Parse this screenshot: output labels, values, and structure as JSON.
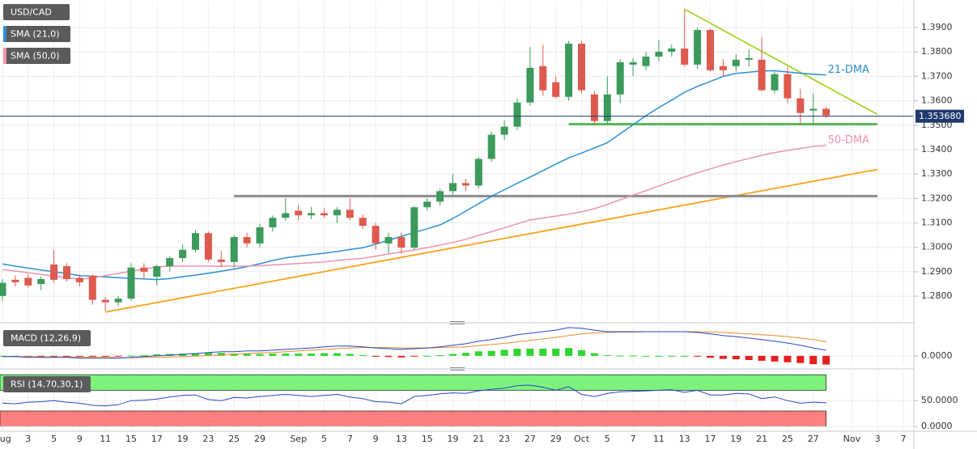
{
  "chart_data": [
    {
      "type": "candlestick",
      "name": "USD/CAD",
      "categories": [
        "Aug",
        null,
        "3",
        null,
        "5",
        null,
        "9",
        null,
        "11",
        null,
        "15",
        null,
        "17",
        null,
        "19",
        null,
        "23",
        null,
        "25",
        null,
        "29",
        null,
        null,
        "Sep",
        null,
        "5",
        null,
        "7",
        null,
        "9",
        null,
        "13",
        null,
        "15",
        null,
        "19",
        null,
        "21",
        null,
        "23",
        null,
        "27",
        null,
        "29",
        null,
        "Oct",
        null,
        "5",
        null,
        "7",
        null,
        "11",
        null,
        "13",
        null,
        "17",
        null,
        "19",
        null,
        "21",
        null,
        "25",
        null,
        "27",
        null,
        null,
        "Nov",
        null,
        "3",
        null,
        "7"
      ],
      "open": [
        1.2801,
        1.2867,
        1.2875,
        1.285,
        1.293,
        1.2923,
        1.2875,
        1.2884,
        1.2785,
        1.2775,
        1.279,
        1.2917,
        1.288,
        1.2923,
        1.2956,
        1.299,
        1.3058,
        1.295,
        1.294,
        1.3042,
        1.3016,
        1.3082,
        1.3121,
        1.315,
        1.3131,
        1.314,
        1.3131,
        1.3154,
        1.3121,
        1.3088,
        1.3016,
        1.3042,
        1.2999,
        1.3164,
        1.3187,
        1.323,
        1.3263,
        1.3253,
        1.3362,
        1.3461,
        1.3494,
        1.3593,
        1.3742,
        1.3676,
        1.3616,
        1.3834,
        1.3626,
        1.3517,
        1.3626,
        1.3748,
        1.3742,
        1.3781,
        1.3801,
        1.3814,
        1.3748,
        1.389,
        1.3742,
        1.3742,
        1.3768,
        1.3768,
        1.3643,
        1.3709,
        1.361,
        1.356,
        1.3567,
        null,
        null,
        null,
        null,
        null,
        null
      ],
      "high": [
        1.287,
        1.2885,
        1.289,
        1.288,
        1.299,
        1.2935,
        1.289,
        1.289,
        1.2795,
        1.28,
        1.2935,
        1.2935,
        1.293,
        1.2965,
        1.301,
        1.307,
        1.3065,
        1.2985,
        1.305,
        1.306,
        1.3095,
        1.313,
        1.32,
        1.3175,
        1.3165,
        1.316,
        1.3165,
        1.32,
        1.3135,
        1.31,
        1.306,
        1.306,
        1.317,
        1.32,
        1.324,
        1.33,
        1.328,
        1.337,
        1.3475,
        1.352,
        1.361,
        1.382,
        1.383,
        1.37,
        1.3845,
        1.3845,
        1.364,
        1.37,
        1.377,
        1.3775,
        1.38,
        1.385,
        1.383,
        1.3975,
        1.39,
        1.3895,
        1.377,
        1.379,
        1.381,
        1.386,
        1.372,
        1.374,
        1.365,
        1.363,
        1.3575,
        null,
        null,
        null,
        null,
        null,
        null
      ],
      "low": [
        1.278,
        1.284,
        1.2835,
        1.2825,
        1.2855,
        1.286,
        1.284,
        1.2765,
        1.274,
        1.276,
        1.278,
        1.287,
        1.2845,
        1.29,
        1.294,
        1.298,
        1.294,
        1.292,
        1.2915,
        1.3,
        1.3,
        1.3065,
        1.311,
        1.311,
        1.3115,
        1.312,
        1.31,
        1.311,
        1.3075,
        1.299,
        1.2975,
        1.2975,
        1.299,
        1.315,
        1.317,
        1.3215,
        1.323,
        1.324,
        1.335,
        1.344,
        1.348,
        1.358,
        1.362,
        1.361,
        1.36,
        1.363,
        1.35,
        1.3505,
        1.359,
        1.37,
        1.3725,
        1.376,
        1.378,
        1.374,
        1.373,
        1.372,
        1.37,
        1.372,
        1.374,
        1.364,
        1.363,
        1.359,
        1.35,
        1.35,
        1.353,
        null,
        null,
        null,
        null,
        null,
        null
      ],
      "close": [
        1.2855,
        1.2857,
        1.2844,
        1.287,
        1.2867,
        1.287,
        1.2857,
        1.2785,
        1.2775,
        1.279,
        1.2917,
        1.29,
        1.2923,
        1.2956,
        1.299,
        1.3058,
        1.295,
        1.294,
        1.3042,
        1.3016,
        1.3082,
        1.3121,
        1.314,
        1.3131,
        1.314,
        1.3131,
        1.3154,
        1.3121,
        1.3088,
        1.3016,
        1.3042,
        1.2999,
        1.3164,
        1.3187,
        1.323,
        1.3263,
        1.3253,
        1.3362,
        1.3461,
        1.3494,
        1.3593,
        1.3735,
        1.3643,
        1.3616,
        1.3834,
        1.3643,
        1.3517,
        1.3626,
        1.3758,
        1.3758,
        1.3781,
        1.3801,
        1.3814,
        1.3748,
        1.389,
        1.3725,
        1.3725,
        1.3768,
        1.3775,
        1.3643,
        1.3709,
        1.361,
        1.355,
        1.3567,
        1.354,
        null,
        null,
        null,
        null,
        null,
        null
      ],
      "up_color": "#3c9a5b",
      "down_color": "#dd5a4e",
      "ylim": [
        1.2701,
        1.4006
      ],
      "yticks": [
        {
          "value": 1.28,
          "label": "1.2800"
        },
        {
          "value": 1.29,
          "label": "1.2900"
        },
        {
          "value": 1.3,
          "label": "1.3000"
        },
        {
          "value": 1.31,
          "label": "1.3100"
        },
        {
          "value": 1.32,
          "label": "1.3200"
        },
        {
          "value": 1.33,
          "label": "1.3300"
        },
        {
          "value": 1.34,
          "label": "1.3400"
        },
        {
          "value": 1.35,
          "label": "1.3500"
        },
        {
          "value": 1.36,
          "label": "1.3600"
        },
        {
          "value": 1.37,
          "label": "1.3700"
        },
        {
          "value": 1.38,
          "label": "1.3800"
        },
        {
          "value": 1.39,
          "label": "1.3900"
        }
      ],
      "grid": true,
      "series": [
        {
          "name": "SMA (21,0)",
          "label": "21-DMA",
          "color": "#2b8fd6",
          "values": [
            1.2932,
            1.2923,
            1.2915,
            1.2907,
            1.29,
            1.2892,
            1.2884,
            1.2882,
            1.2879,
            1.2876,
            1.2873,
            1.2871,
            1.2868,
            1.2872,
            1.288,
            1.2886,
            1.2894,
            1.2902,
            1.2911,
            1.2921,
            1.2933,
            1.2946,
            1.2957,
            1.2964,
            1.297,
            1.2976,
            1.2983,
            1.2991,
            1.2998,
            1.3013,
            1.3029,
            1.3045,
            1.3061,
            1.3076,
            1.3092,
            1.3118,
            1.3148,
            1.3179,
            1.3209,
            1.3236,
            1.3262,
            1.3288,
            1.3314,
            1.3341,
            1.3366,
            1.3386,
            1.3407,
            1.3428,
            1.3465,
            1.3502,
            1.3539,
            1.3572,
            1.3603,
            1.3635,
            1.3659,
            1.3679,
            1.37,
            1.3712,
            1.3717,
            1.3722,
            1.3723,
            1.3718,
            1.3713,
            1.3709,
            1.3706,
            null,
            null,
            null,
            null,
            null,
            null
          ]
        },
        {
          "name": "SMA (50,0)",
          "label": "50-DMA",
          "color": "#ee93ab",
          "values": [
            1.2909,
            1.2903,
            1.2896,
            1.2889,
            1.2882,
            1.2876,
            1.2869,
            1.2875,
            1.2884,
            1.2893,
            1.2902,
            1.2911,
            1.292,
            1.2923,
            1.2923,
            1.2923,
            1.2923,
            1.2923,
            1.2923,
            1.2923,
            1.2925,
            1.2928,
            1.2931,
            1.2934,
            1.2937,
            1.294,
            1.2946,
            1.2951,
            1.2955,
            1.2964,
            1.2973,
            1.2981,
            1.2989,
            1.2999,
            1.3009,
            1.302,
            1.3033,
            1.3049,
            1.3064,
            1.308,
            1.3096,
            1.3112,
            1.312,
            1.3128,
            1.3136,
            1.3145,
            1.3158,
            1.3176,
            1.3195,
            1.3214,
            1.3232,
            1.3251,
            1.327,
            1.3288,
            1.3305,
            1.3321,
            1.3337,
            1.3351,
            1.3364,
            1.3377,
            1.3388,
            1.3397,
            1.3405,
            1.3413,
            1.3418,
            null,
            null,
            null,
            null,
            null,
            null
          ]
        }
      ],
      "trendlines": [
        {
          "color": "#f5a31a",
          "x": [
            8,
            68
          ],
          "values": [
            1.2735,
            1.3319
          ]
        },
        {
          "color": "#a6d62a",
          "x": [
            53,
            68
          ],
          "values": [
            1.3975,
            1.3544
          ]
        },
        {
          "color": "#8c8c8c",
          "x": [
            18,
            68
          ],
          "values": [
            1.321,
            1.321
          ]
        },
        {
          "color": "#5cb85c",
          "x": [
            44,
            68
          ],
          "values": [
            1.3504,
            1.3504
          ]
        }
      ],
      "last_price": {
        "value": 1.35368,
        "label": "1.353680"
      }
    },
    {
      "type": "macd",
      "name": "MACD (12,26,9)",
      "macd": {
        "color": "#2348c8",
        "values": [
          -0.0002,
          -0.0002,
          -0.0004,
          -0.0004,
          -0.0004,
          -0.0004,
          -0.0006,
          -0.0006,
          -0.0006,
          -0.0006,
          -0.0004,
          -0.0002,
          0,
          0.0002,
          0.0004,
          0.0006,
          0.0009,
          0.0011,
          0.0011,
          0.0013,
          0.0013,
          0.0015,
          0.0017,
          0.0019,
          0.0021,
          0.0024,
          0.0026,
          0.0026,
          0.0024,
          0.0021,
          0.0019,
          0.0017,
          0.0019,
          0.0021,
          0.0024,
          0.0028,
          0.0032,
          0.0039,
          0.0043,
          0.0049,
          0.0056,
          0.006,
          0.0064,
          0.0068,
          0.0075,
          0.0073,
          0.0068,
          0.0064,
          0.0064,
          0.0064,
          0.0064,
          0.0064,
          0.0064,
          0.0064,
          0.0062,
          0.0058,
          0.0054,
          0.0051,
          0.0047,
          0.0043,
          0.0039,
          0.0034,
          0.0028,
          0.0021,
          0.0015,
          null,
          null,
          null,
          null,
          null,
          null
        ]
      },
      "signal": {
        "color": "#f08a24",
        "values": [
          -0.0002,
          -0.0002,
          -0.0002,
          -0.0003,
          -0.0003,
          -0.0003,
          -0.0004,
          -0.0004,
          -0.0004,
          -0.0005,
          -0.0005,
          -0.0004,
          -0.0004,
          -0.0003,
          -0.0002,
          -0.0001,
          0.0001,
          0.0003,
          0.0005,
          0.0006,
          0.0008,
          0.0009,
          0.0011,
          0.0013,
          0.0015,
          0.0017,
          0.0019,
          0.0021,
          0.0022,
          0.0022,
          0.0022,
          0.0021,
          0.0021,
          0.0021,
          0.0022,
          0.0023,
          0.0024,
          0.0027,
          0.003,
          0.0033,
          0.0037,
          0.0041,
          0.0045,
          0.0049,
          0.0054,
          0.0058,
          0.0061,
          0.0062,
          0.0063,
          0.0063,
          0.0064,
          0.0064,
          0.0064,
          0.0064,
          0.0064,
          0.0063,
          0.0062,
          0.006,
          0.0058,
          0.0056,
          0.0054,
          0.0051,
          0.0047,
          0.0043,
          0.0038,
          null,
          null,
          null,
          null,
          null,
          null
        ]
      },
      "histogram": {
        "up_color": "#2fd62f",
        "down_color": "#e61e1e",
        "values": [
          0,
          0,
          -0.0002,
          -0.0001,
          -0.0001,
          -0.0001,
          -0.0002,
          -0.0002,
          -0.0002,
          -0.0001,
          0.0001,
          0.0002,
          0.0004,
          0.0005,
          0.0006,
          0.0007,
          0.0008,
          0.0008,
          0.0006,
          0.0007,
          0.0005,
          0.0006,
          0.0006,
          0.0006,
          0.0006,
          0.0007,
          0.0007,
          0.0005,
          0.0002,
          -0.0001,
          -0.0003,
          -0.0004,
          -0.0002,
          0,
          0.0002,
          0.0005,
          0.0008,
          0.0012,
          0.0013,
          0.0016,
          0.0019,
          0.0019,
          0.0019,
          0.0019,
          0.0021,
          0.0015,
          0.0007,
          0.0002,
          0.0001,
          0.0001,
          0,
          0,
          0,
          0,
          -0.0002,
          -0.0005,
          -0.0008,
          -0.0009,
          -0.0011,
          -0.0013,
          -0.0015,
          -0.0017,
          -0.0019,
          -0.0022,
          -0.0023,
          null,
          null,
          null,
          null,
          null,
          null
        ]
      },
      "ylim": [
        -0.0026,
        0.0079
      ],
      "yticks": [
        {
          "value": 0,
          "label": "0.0000"
        }
      ],
      "grid": true
    },
    {
      "type": "rsi",
      "name": "RSI (14,70,30,1)",
      "color": "#2348c8",
      "values": [
        45,
        44,
        47,
        48,
        50,
        47,
        45,
        41,
        40,
        42,
        50,
        51,
        53,
        57,
        60,
        61,
        52,
        50,
        56,
        55,
        58,
        60,
        62,
        60,
        58,
        60,
        62,
        57,
        54,
        48,
        47,
        44,
        58,
        60,
        63,
        65,
        64,
        69,
        72,
        74,
        79,
        80,
        76,
        70,
        77,
        62,
        58,
        64,
        67,
        68,
        69,
        70,
        71,
        66,
        70,
        61,
        61,
        64,
        63,
        54,
        57,
        50,
        45,
        47,
        46,
        null,
        null,
        null,
        null,
        null,
        null
      ],
      "bands": [
        {
          "from": 70,
          "to": 100,
          "color": "#7cf27c"
        },
        {
          "from": 0,
          "to": 30,
          "color": "#ff7f7f"
        }
      ],
      "ylim": [
        -9,
        105
      ],
      "yticks": [
        {
          "value": 50,
          "label": "50.0000"
        },
        {
          "value": 0,
          "label": "0.0000"
        }
      ],
      "grid": true
    }
  ]
}
